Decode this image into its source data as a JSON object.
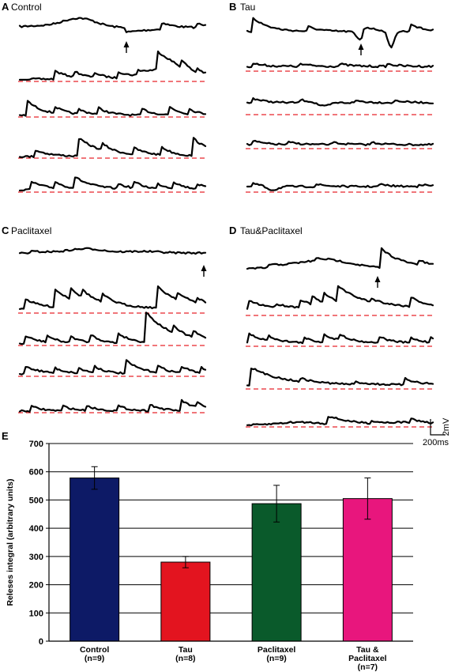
{
  "panels": [
    {
      "letter": "A",
      "title": "Control"
    },
    {
      "letter": "B",
      "title": "Tau"
    },
    {
      "letter": "C",
      "title": "Paclitaxel"
    },
    {
      "letter": "D",
      "title": "Tau&Paclitaxel"
    }
  ],
  "scale_bar": {
    "voltage": "2mV",
    "time": "200ms"
  },
  "chart_data": {
    "type": "bar",
    "panel_letter": "E",
    "ylabel": "Releses integral (arbitrary units)",
    "ylim": [
      0,
      700
    ],
    "yticks": [
      0,
      100,
      200,
      300,
      400,
      500,
      600,
      700
    ],
    "grid": true,
    "categories": [
      {
        "lines": [
          "Control",
          "(n=9)"
        ]
      },
      {
        "lines": [
          "Tau",
          "(n=8)"
        ]
      },
      {
        "lines": [
          "Paclitaxel",
          "(n=9)"
        ]
      },
      {
        "lines": [
          "Tau &",
          "Paclitaxel",
          "(n=7)"
        ]
      }
    ],
    "values": [
      578,
      280,
      487,
      505
    ],
    "errors": [
      40,
      20,
      65,
      73
    ],
    "colors": [
      "#0d1a66",
      "#e3141f",
      "#0a5a2b",
      "#e8167d"
    ]
  }
}
